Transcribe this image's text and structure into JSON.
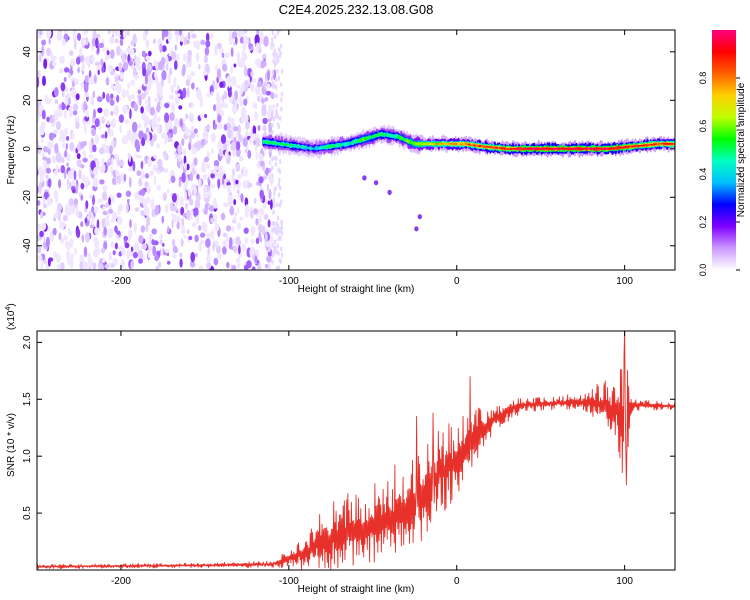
{
  "figure_title": "C2E4.2025.232.13.08.G08",
  "chart_data": [
    {
      "type": "heatmap",
      "title": "C2E4.2025.232.13.08.G08",
      "xlabel": "Height of straight line (km)",
      "ylabel": "Frequency (Hz)",
      "xlim": [
        -250,
        130
      ],
      "ylim": [
        -50,
        49
      ],
      "xticks": [
        -200,
        -100,
        0,
        100
      ],
      "yticks": [
        -40,
        -20,
        0,
        20,
        40
      ],
      "colorbar": {
        "label": "Normalized spectral amplitude",
        "range": [
          0,
          1
        ],
        "ticks": [
          0.0,
          0.2,
          0.4,
          0.6,
          0.8
        ],
        "tick_labels": [
          "0.0",
          "0.2",
          "0.4",
          "0.6",
          "0.8"
        ],
        "colors": [
          "#ffffff",
          "#cc99ff",
          "#8000ff",
          "#0000ff",
          "#00c0ff",
          "#00ffc0",
          "#00ff00",
          "#c0ff00",
          "#ffd000",
          "#ff6000",
          "#ff0000",
          "#ff0080"
        ]
      },
      "noise_region": {
        "x_range": [
          -250,
          -110
        ],
        "freq_range": [
          -50,
          49
        ],
        "amplitude_range": [
          0.0,
          0.15
        ]
      },
      "ridge": [
        {
          "x": -115,
          "freq": 3,
          "amp": 0.45
        },
        {
          "x": -105,
          "freq": 2,
          "amp": 0.5
        },
        {
          "x": -95,
          "freq": 1,
          "amp": 0.45
        },
        {
          "x": -85,
          "freq": 0,
          "amp": 0.4
        },
        {
          "x": -75,
          "freq": 1,
          "amp": 0.5
        },
        {
          "x": -65,
          "freq": 2,
          "amp": 0.45
        },
        {
          "x": -55,
          "freq": 4,
          "amp": 0.55
        },
        {
          "x": -45,
          "freq": 6,
          "amp": 0.5
        },
        {
          "x": -35,
          "freq": 5,
          "amp": 0.5
        },
        {
          "x": -25,
          "freq": 2,
          "amp": 0.6
        },
        {
          "x": -15,
          "freq": 2,
          "amp": 0.7
        },
        {
          "x": -5,
          "freq": 2,
          "amp": 0.75
        },
        {
          "x": 5,
          "freq": 2,
          "amp": 0.8
        },
        {
          "x": 15,
          "freq": 1,
          "amp": 0.85
        },
        {
          "x": 30,
          "freq": 0,
          "amp": 0.9
        },
        {
          "x": 50,
          "freq": 0,
          "amp": 0.95
        },
        {
          "x": 70,
          "freq": 0,
          "amp": 0.95
        },
        {
          "x": 90,
          "freq": 0,
          "amp": 0.95
        },
        {
          "x": 105,
          "freq": 1,
          "amp": 0.9
        },
        {
          "x": 120,
          "freq": 2,
          "amp": 0.85
        },
        {
          "x": 130,
          "freq": 2,
          "amp": 0.85
        }
      ],
      "secondary_track": [
        {
          "x": -55,
          "freq": -12
        },
        {
          "x": -48,
          "freq": -14
        },
        {
          "x": -40,
          "freq": -18
        },
        {
          "x": -22,
          "freq": -28
        },
        {
          "x": -24,
          "freq": -33
        }
      ]
    },
    {
      "type": "line",
      "xlabel": "Height of straight line (km)",
      "ylabel": "SNR (10 * v/v)",
      "y_multiplier": "(x10",
      "y_multiplier_exp": "4",
      "y_multiplier_close": ")",
      "xlim": [
        -250,
        130
      ],
      "ylim": [
        0,
        2.1
      ],
      "xticks": [
        -200,
        -100,
        0,
        100
      ],
      "yticks": [
        0.5,
        1.0,
        1.5,
        2.0
      ],
      "ytick_labels": [
        "0.5",
        "1.0",
        "1.5",
        "2.0"
      ],
      "series": [
        {
          "name": "SNR",
          "color": "#e8302a",
          "envelope": [
            {
              "x": -250,
              "mean": 0.03,
              "spread": 0.02
            },
            {
              "x": -160,
              "mean": 0.04,
              "spread": 0.02
            },
            {
              "x": -110,
              "mean": 0.05,
              "spread": 0.03
            },
            {
              "x": -100,
              "mean": 0.1,
              "spread": 0.08
            },
            {
              "x": -90,
              "mean": 0.15,
              "spread": 0.15
            },
            {
              "x": -80,
              "mean": 0.25,
              "spread": 0.3
            },
            {
              "x": -70,
              "mean": 0.3,
              "spread": 0.35
            },
            {
              "x": -60,
              "mean": 0.35,
              "spread": 0.35
            },
            {
              "x": -50,
              "mean": 0.4,
              "spread": 0.4
            },
            {
              "x": -40,
              "mean": 0.45,
              "spread": 0.45
            },
            {
              "x": -30,
              "mean": 0.5,
              "spread": 0.5
            },
            {
              "x": -20,
              "mean": 0.65,
              "spread": 0.45
            },
            {
              "x": -10,
              "mean": 0.85,
              "spread": 0.4
            },
            {
              "x": 0,
              "mean": 0.95,
              "spread": 0.4
            },
            {
              "x": 10,
              "mean": 1.15,
              "spread": 0.35
            },
            {
              "x": 20,
              "mean": 1.3,
              "spread": 0.15
            },
            {
              "x": 30,
              "mean": 1.4,
              "spread": 0.1
            },
            {
              "x": 40,
              "mean": 1.45,
              "spread": 0.06
            },
            {
              "x": 60,
              "mean": 1.47,
              "spread": 0.06
            },
            {
              "x": 75,
              "mean": 1.47,
              "spread": 0.1
            },
            {
              "x": 85,
              "mean": 1.45,
              "spread": 0.2
            },
            {
              "x": 95,
              "mean": 1.4,
              "spread": 0.3
            },
            {
              "x": 100,
              "mean": 1.3,
              "spread": 0.6
            },
            {
              "x": 105,
              "mean": 1.45,
              "spread": 0.05
            },
            {
              "x": 130,
              "mean": 1.44,
              "spread": 0.03
            }
          ],
          "spikes": [
            {
              "x": 8,
              "y": 1.7
            },
            {
              "x": 100,
              "y": 2.12
            },
            {
              "x": 101,
              "y": 0.75
            },
            {
              "x": -14,
              "y": 1.38
            },
            {
              "x": -24,
              "y": 1.35
            }
          ]
        }
      ]
    }
  ]
}
